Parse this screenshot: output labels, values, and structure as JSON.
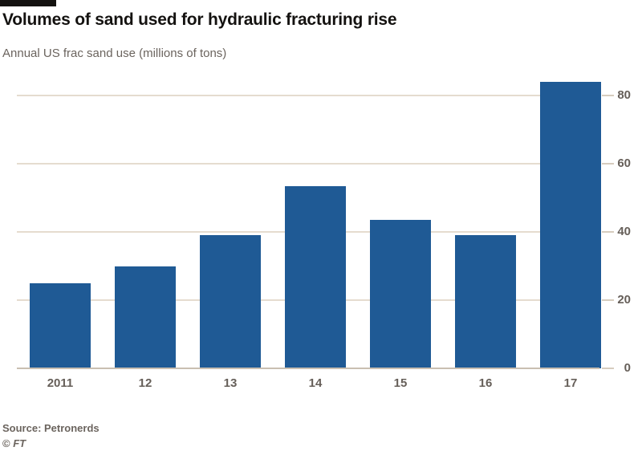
{
  "header": {
    "title": "Volumes of sand used for hydraulic fracturing rise",
    "subtitle": "Annual US frac sand use (millions of tons)"
  },
  "footer": {
    "source": "Source: Petronerds",
    "credit_symbol": "©",
    "credit_ft": "FT"
  },
  "colors": {
    "bar_blue": "#1f5a95",
    "gridline": "#e5dccf",
    "baseline": "#c9bfb1",
    "axis_text": "#665f59",
    "title_text": "#141210",
    "muted_text": "#6b645e",
    "background": "#ffffff"
  },
  "chart_data": {
    "type": "bar",
    "title": "Volumes of sand used for hydraulic fracturing rise",
    "subtitle": "Annual US frac sand use (millions of tons)",
    "categories": [
      "2011",
      "12",
      "13",
      "14",
      "15",
      "16",
      "17"
    ],
    "values": [
      25,
      30,
      39,
      53.5,
      43.5,
      39,
      84
    ],
    "xlabel": "",
    "ylabel": "millions of tons",
    "ylim": [
      0,
      84.5
    ],
    "yticks": [
      0,
      20,
      40,
      60,
      80
    ],
    "grid": "horizontal",
    "axis_side": "right",
    "legend": "none",
    "bar_color": "#1f5a95",
    "source": "Source: Petronerds"
  }
}
